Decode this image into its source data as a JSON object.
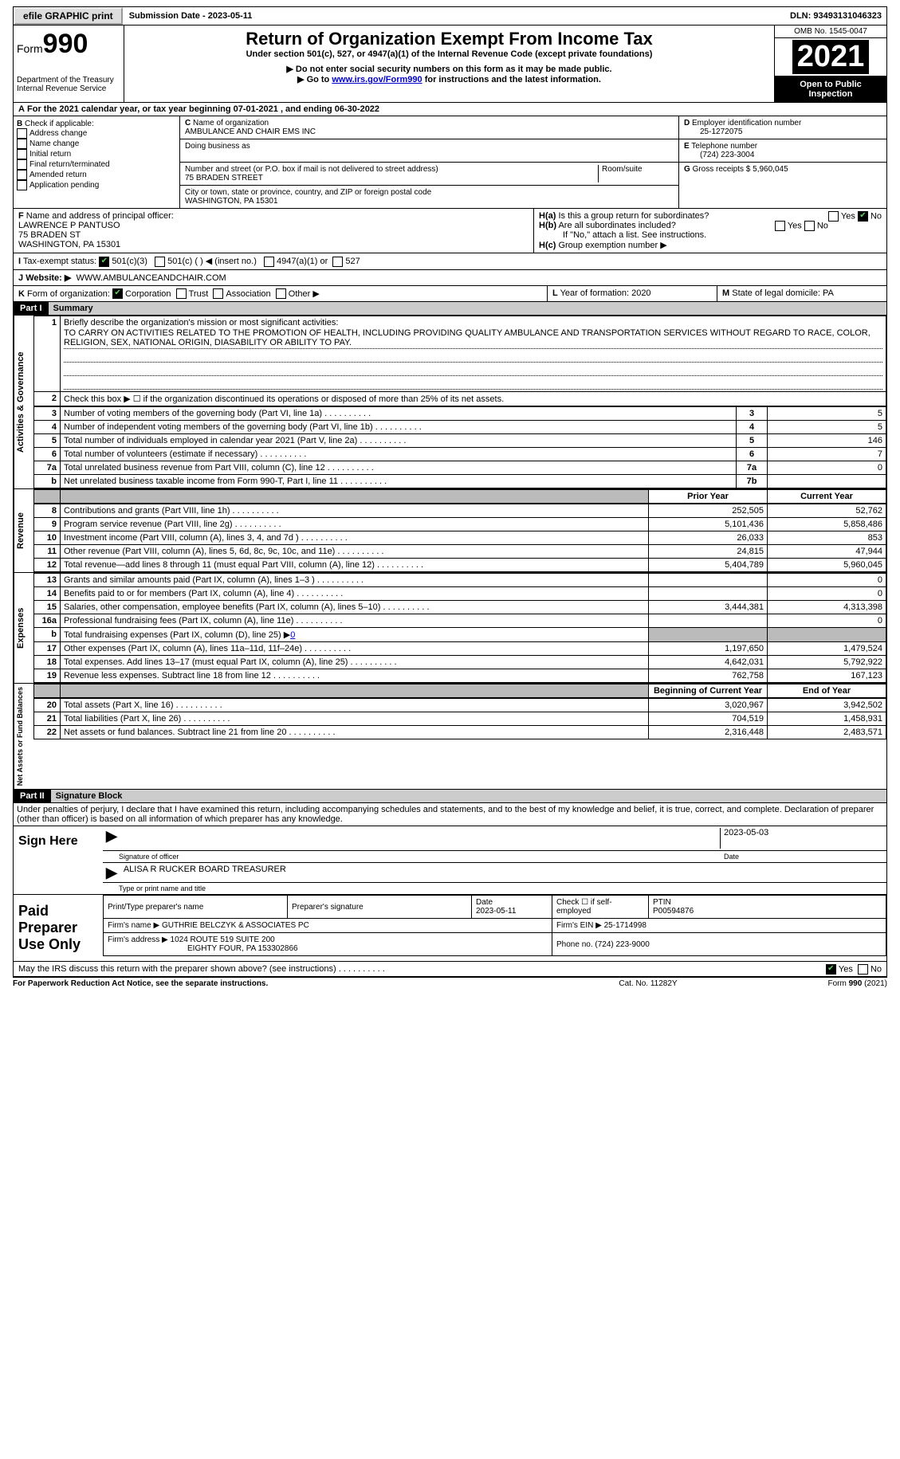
{
  "topbar": {
    "efile": "efile GRAPHIC print",
    "submission_label": "Submission Date - ",
    "submission_date": "2023-05-11",
    "dln_label": "DLN: ",
    "dln": "93493131046323"
  },
  "header": {
    "form_label": "Form",
    "form_num": "990",
    "dept": "Department of the Treasury",
    "irs": "Internal Revenue Service",
    "title": "Return of Organization Exempt From Income Tax",
    "subtitle": "Under section 501(c), 527, or 4947(a)(1) of the Internal Revenue Code (except private foundations)",
    "note1": "Do not enter social security numbers on this form as it may be made public.",
    "note2_pre": "Go to ",
    "note2_link": "www.irs.gov/Form990",
    "note2_post": " for instructions and the latest information.",
    "omb": "OMB No. 1545-0047",
    "year": "2021",
    "inspect": "Open to Public Inspection"
  },
  "lineA": "For the 2021 calendar year, or tax year beginning 07-01-2021    , and ending 06-30-2022",
  "boxB": {
    "label": "Check if applicable:",
    "o1": "Address change",
    "o2": "Name change",
    "o3": "Initial return",
    "o4": "Final return/terminated",
    "o5": "Amended return",
    "o6": "Application pending"
  },
  "boxC": {
    "c_lbl": "Name of organization",
    "c_val": "AMBULANCE AND CHAIR EMS INC",
    "dba_lbl": "Doing business as",
    "addr_lbl": "Number and street (or P.O. box if mail is not delivered to street address)",
    "addr_val": "75 BRADEN STREET",
    "room_lbl": "Room/suite",
    "city_lbl": "City or town, state or province, country, and ZIP or foreign postal code",
    "city_val": "WASHINGTON, PA  15301"
  },
  "boxD": {
    "d_lbl": "Employer identification number",
    "d_val": "25-1272075",
    "e_lbl": "Telephone number",
    "e_val": "(724) 223-3004",
    "g_lbl": "Gross receipts $ ",
    "g_val": "5,960,045"
  },
  "boxF": {
    "lbl": "Name and address of principal officer:",
    "l1": "LAWRENCE P PANTUSO",
    "l2": "75 BRADEN ST",
    "l3": "WASHINGTON, PA  15301"
  },
  "boxH": {
    "a_lbl": "Is this a group return for subordinates?",
    "b_lbl": "Are all subordinates included?",
    "b_note": "If \"No,\" attach a list. See instructions.",
    "c_lbl": "Group exemption number ▶"
  },
  "boxI": {
    "lbl": "Tax-exempt status:",
    "o1": "501(c)(3)",
    "o2": "501(c) (  ) ◀ (insert no.)",
    "o3": "4947(a)(1) or",
    "o4": "527"
  },
  "boxJ": {
    "lbl": "Website: ▶",
    "val": "WWW.AMBULANCEANDCHAIR.COM"
  },
  "boxK": {
    "lbl": "Form of organization:",
    "o1": "Corporation",
    "o2": "Trust",
    "o3": "Association",
    "o4": "Other ▶"
  },
  "boxL": {
    "lbl": "Year of formation: ",
    "val": "2020"
  },
  "boxM": {
    "lbl": "State of legal domicile: ",
    "val": "PA"
  },
  "part1": {
    "bar": "Part I",
    "title": "Summary"
  },
  "summary": {
    "l1_lbl": "Briefly describe the organization's mission or most significant activities:",
    "l1_val": "TO CARRY ON ACTIVITIES RELATED TO THE PROMOTION OF HEALTH, INCLUDING PROVIDING QUALITY AMBULANCE AND TRANSPORTATION SERVICES WITHOUT REGARD TO RACE, COLOR, RELIGION, SEX, NATIONAL ORIGIN, DIASABILITY OR ABILITY TO PAY.",
    "l2": "Check this box ▶ ☐ if the organization discontinued its operations or disposed of more than 25% of its net assets.",
    "rows_a": [
      {
        "n": "3",
        "t": "Number of voting members of the governing body (Part VI, line 1a)",
        "b": "3",
        "v": "5"
      },
      {
        "n": "4",
        "t": "Number of independent voting members of the governing body (Part VI, line 1b)",
        "b": "4",
        "v": "5"
      },
      {
        "n": "5",
        "t": "Total number of individuals employed in calendar year 2021 (Part V, line 2a)",
        "b": "5",
        "v": "146"
      },
      {
        "n": "6",
        "t": "Total number of volunteers (estimate if necessary)",
        "b": "6",
        "v": "7"
      },
      {
        "n": "7a",
        "t": "Total unrelated business revenue from Part VIII, column (C), line 12",
        "b": "7a",
        "v": "0"
      },
      {
        "n": "b",
        "t": "Net unrelated business taxable income from Form 990-T, Part I, line 11",
        "b": "7b",
        "v": ""
      }
    ],
    "hdr_prior": "Prior Year",
    "hdr_curr": "Current Year",
    "rev": [
      {
        "n": "8",
        "t": "Contributions and grants (Part VIII, line 1h)",
        "p": "252,505",
        "c": "52,762"
      },
      {
        "n": "9",
        "t": "Program service revenue (Part VIII, line 2g)",
        "p": "5,101,436",
        "c": "5,858,486"
      },
      {
        "n": "10",
        "t": "Investment income (Part VIII, column (A), lines 3, 4, and 7d )",
        "p": "26,033",
        "c": "853"
      },
      {
        "n": "11",
        "t": "Other revenue (Part VIII, column (A), lines 5, 6d, 8c, 9c, 10c, and 11e)",
        "p": "24,815",
        "c": "47,944"
      },
      {
        "n": "12",
        "t": "Total revenue—add lines 8 through 11 (must equal Part VIII, column (A), line 12)",
        "p": "5,404,789",
        "c": "5,960,045"
      }
    ],
    "exp": [
      {
        "n": "13",
        "t": "Grants and similar amounts paid (Part IX, column (A), lines 1–3 )",
        "p": "",
        "c": "0"
      },
      {
        "n": "14",
        "t": "Benefits paid to or for members (Part IX, column (A), line 4)",
        "p": "",
        "c": "0"
      },
      {
        "n": "15",
        "t": "Salaries, other compensation, employee benefits (Part IX, column (A), lines 5–10)",
        "p": "3,444,381",
        "c": "4,313,398"
      },
      {
        "n": "16a",
        "t": "Professional fundraising fees (Part IX, column (A), line 11e)",
        "p": "",
        "c": "0"
      },
      {
        "n": "b",
        "t": "Total fundraising expenses (Part IX, column (D), line 25) ▶",
        "p": "grey",
        "c": "grey",
        "link": "0"
      },
      {
        "n": "17",
        "t": "Other expenses (Part IX, column (A), lines 11a–11d, 11f–24e)",
        "p": "1,197,650",
        "c": "1,479,524"
      },
      {
        "n": "18",
        "t": "Total expenses. Add lines 13–17 (must equal Part IX, column (A), line 25)",
        "p": "4,642,031",
        "c": "5,792,922"
      },
      {
        "n": "19",
        "t": "Revenue less expenses. Subtract line 18 from line 12",
        "p": "762,758",
        "c": "167,123"
      }
    ],
    "hdr_beg": "Beginning of Current Year",
    "hdr_end": "End of Year",
    "net": [
      {
        "n": "20",
        "t": "Total assets (Part X, line 16)",
        "p": "3,020,967",
        "c": "3,942,502"
      },
      {
        "n": "21",
        "t": "Total liabilities (Part X, line 26)",
        "p": "704,519",
        "c": "1,458,931"
      },
      {
        "n": "22",
        "t": "Net assets or fund balances. Subtract line 21 from line 20",
        "p": "2,316,448",
        "c": "2,483,571"
      }
    ],
    "side_a": "Activities & Governance",
    "side_r": "Revenue",
    "side_e": "Expenses",
    "side_n": "Net Assets or Fund Balances"
  },
  "part2": {
    "bar": "Part II",
    "title": "Signature Block",
    "decl": "Under penalties of perjury, I declare that I have examined this return, including accompanying schedules and statements, and to the best of my knowledge and belief, it is true, correct, and complete. Declaration of preparer (other than officer) is based on all information of which preparer has any knowledge."
  },
  "sign": {
    "here": "Sign Here",
    "sig_lbl": "Signature of officer",
    "date_lbl": "Date",
    "date_val": "2023-05-03",
    "name_val": "ALISA R RUCKER  BOARD TREASURER",
    "name_lbl": "Type or print name and title"
  },
  "prep": {
    "lbl": "Paid Preparer Use Only",
    "r1c1": "Print/Type preparer's name",
    "r1c2": "Preparer's signature",
    "r1c3_l": "Date",
    "r1c3_v": "2023-05-11",
    "r1c4": "Check ☐ if self-employed",
    "r1c5_l": "PTIN",
    "r1c5_v": "P00594876",
    "r2_l": "Firm's name    ▶ ",
    "r2_v": "GUTHRIE BELCZYK & ASSOCIATES PC",
    "r2_ein_l": "Firm's EIN ▶ ",
    "r2_ein_v": "25-1714998",
    "r3_l": "Firm's address ▶ ",
    "r3_v1": "1024 ROUTE 519 SUITE 200",
    "r3_v2": "EIGHTY FOUR, PA  153302866",
    "r3_ph_l": "Phone no. ",
    "r3_ph_v": "(724) 223-9000"
  },
  "discuss": "May the IRS discuss this return with the preparer shown above? (see instructions)",
  "footer": {
    "l": "For Paperwork Reduction Act Notice, see the separate instructions.",
    "c": "Cat. No. 11282Y",
    "r": "Form 990 (2021)"
  }
}
